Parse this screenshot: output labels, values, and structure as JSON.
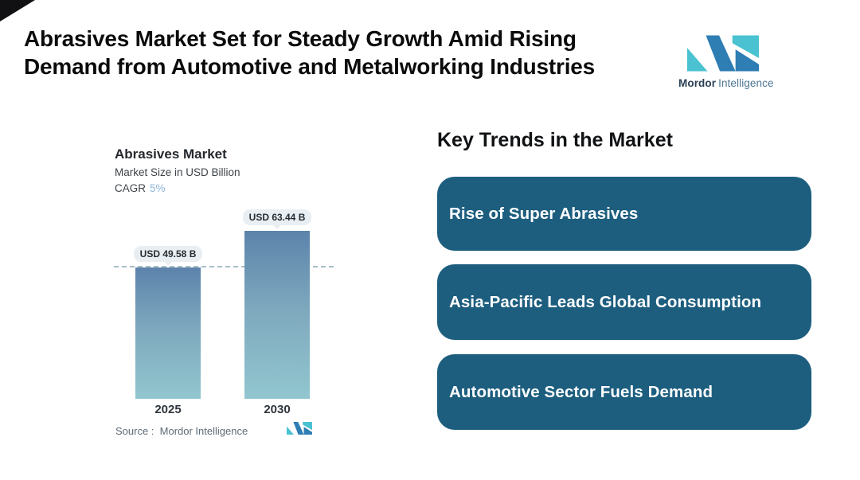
{
  "header": {
    "title_line1": "Abrasives Market Set for Steady Growth Amid Rising",
    "title_line2": "Demand from Automotive and Metalworking Industries",
    "brand": {
      "name_bold": "Mordor",
      "name_regular": "Intelligence"
    }
  },
  "chart": {
    "title": "Abrasives Market",
    "subtitle": "Market Size in USD Billion",
    "cagr_label": "CAGR",
    "cagr_value": "5%",
    "source_text": "Source :  Mordor Intelligence"
  },
  "chart_data": {
    "type": "bar",
    "title": "Abrasives Market",
    "subtitle": "Market Size in USD Billion",
    "cagr": "5%",
    "unit": "USD Billion",
    "categories": [
      "2025",
      "2030"
    ],
    "values": [
      49.58,
      63.44
    ],
    "value_labels": [
      "USD 49.58 B",
      "USD 63.44 B"
    ],
    "ylim": [
      0,
      63.44
    ],
    "guideline": {
      "at_value": 49.58,
      "style": "dashed",
      "color": "#a9bcc8"
    },
    "bar_gradient_top": "#5c83ab",
    "bar_gradient_bottom": "#91c6cf",
    "grid": "off",
    "legend": "none"
  },
  "trends": {
    "heading": "Key Trends in the Market",
    "card_color": "#1d5e7f",
    "items": [
      {
        "label": "Rise of Super Abrasives"
      },
      {
        "label": "Asia-Pacific Leads Global Consumption"
      },
      {
        "label": "Automotive Sector Fuels Demand"
      }
    ]
  },
  "colors": {
    "logo_blue": "#2e7eb4",
    "logo_teal": "#4ac2d1",
    "accent_cagr": "#8fb7da",
    "pill_bg": "#e9eef2"
  }
}
